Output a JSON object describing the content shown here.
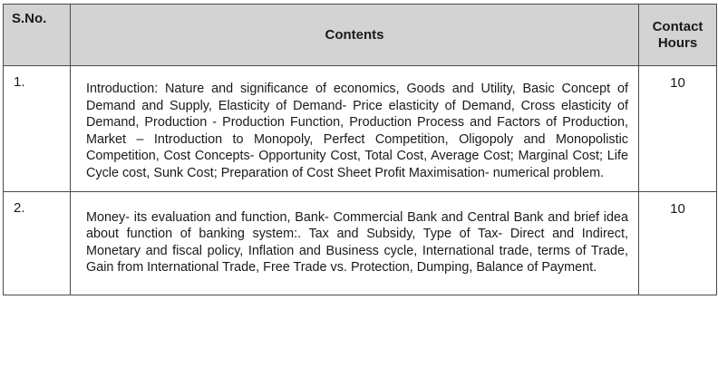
{
  "table": {
    "headers": {
      "sno": "S.No.",
      "contents": "Contents",
      "hours_line1": "Contact",
      "hours_line2": "Hours"
    },
    "rows": [
      {
        "sno": "1.",
        "text": "Introduction: Nature and significance of economics, Goods and Utility, Basic Concept of Demand and Supply, Elasticity of Demand- Price elasticity of Demand, Cross elasticity of Demand, Production - Production Function, Production Process and Factors of Production, Market – Introduction to Monopoly, Perfect Competition, Oligopoly and Monopolistic Competition, Cost Concepts- Opportunity Cost, Total Cost, Average Cost; Marginal Cost; Life Cycle cost, Sunk Cost; Preparation of Cost Sheet Profit Maximisation- numerical problem.",
        "hours": "10"
      },
      {
        "sno": "2.",
        "text": "Money- its evaluation and function, Bank- Commercial Bank and Central Bank and brief idea about function of banking system:. Tax and Subsidy, Type of Tax- Direct and Indirect, Monetary and fiscal policy, Inflation and Business cycle, International trade, terms of Trade, Gain from International Trade, Free Trade vs. Protection, Dumping, Balance of Payment.",
        "hours": "10"
      }
    ]
  },
  "colors": {
    "header_background": "#d3d3d3",
    "border": "#4a4a4a",
    "text": "#1a1a1a"
  }
}
